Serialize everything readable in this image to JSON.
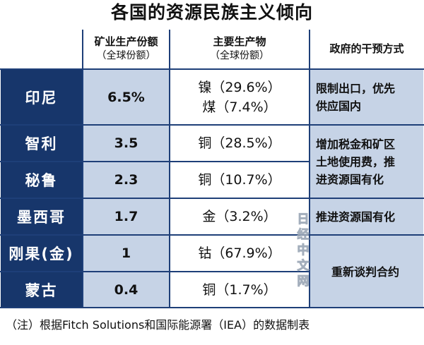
{
  "title": "各国的资源民族主义倾向",
  "headers": {
    "share_main": "矿业生产份额",
    "share_sub": "（全球份额）",
    "product_main": "主要生产物",
    "product_sub": "（全球份额）",
    "gov": "政府的干预方式"
  },
  "rows": [
    {
      "country": "印尼",
      "share": "6.5%",
      "products": [
        "镍（29.6%）",
        "煤（7.4%）"
      ]
    },
    {
      "country": "智利",
      "share": "3.5",
      "products": [
        "铜（28.5%）"
      ]
    },
    {
      "country": "秘鲁",
      "share": "2.3",
      "products": [
        "铜（10.7%）"
      ]
    },
    {
      "country": "墨西哥",
      "share": "1.7",
      "products": [
        "金（3.2%）"
      ]
    },
    {
      "country": "刚果(金)",
      "share": "1",
      "products": [
        "钴（67.9%）"
      ]
    },
    {
      "country": "蒙古",
      "share": "0.4",
      "products": [
        "铜（1.7%）"
      ]
    }
  ],
  "gov_measures": [
    {
      "lines": [
        "限制出口，优先",
        "供应国内"
      ]
    },
    {
      "lines": [
        "增加税金和矿区",
        "土地使用费，推",
        "进资源国有化"
      ]
    },
    {
      "lines": [
        "推进资源国有化"
      ]
    },
    {
      "lines": [
        "重新谈判合约"
      ]
    }
  ],
  "footnote": "（注）根据Fitch Solutions和国际能源署（IEA）的数据制表",
  "watermark": [
    "日",
    "经",
    "中",
    "文",
    "网"
  ],
  "colors": {
    "navy": "#17366b",
    "light_blue": "#c6d3e6"
  }
}
